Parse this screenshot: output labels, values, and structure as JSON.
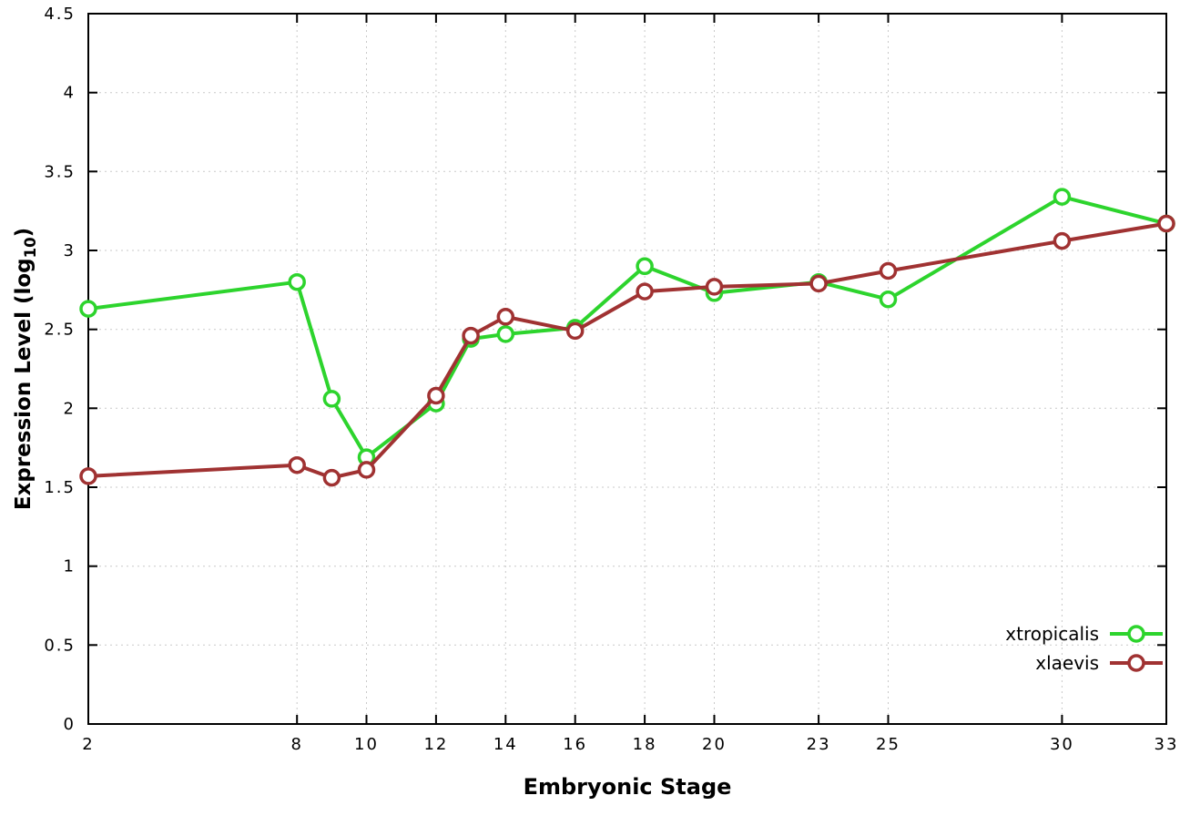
{
  "chart_data": {
    "type": "line",
    "x": [
      2,
      8,
      9,
      10,
      12,
      13,
      14,
      16,
      18,
      20,
      23,
      25,
      30,
      33
    ],
    "series": [
      {
        "name": "xtropicalis",
        "color": "#2dd42d",
        "values": [
          2.63,
          2.8,
          2.06,
          1.69,
          2.03,
          2.44,
          2.47,
          2.51,
          2.9,
          2.73,
          2.8,
          2.69,
          3.34,
          3.17
        ]
      },
      {
        "name": "xlaevis",
        "color": "#a03232",
        "values": [
          1.57,
          1.64,
          1.56,
          1.61,
          2.08,
          2.46,
          2.58,
          2.49,
          2.74,
          2.77,
          2.79,
          2.87,
          3.06,
          3.17
        ]
      }
    ],
    "title": "",
    "xlabel": "Embryonic Stage",
    "ylabel": "Expression Level (log10)",
    "ylabel_parts": {
      "main": "Expression Level (log",
      "sub": "10",
      "close": ")"
    },
    "xlim": [
      2,
      33
    ],
    "ylim": [
      0,
      4.5
    ],
    "xticks": [
      2,
      8,
      10,
      12,
      14,
      16,
      18,
      20,
      23,
      25,
      30,
      33
    ],
    "yticks": [
      0,
      0.5,
      1,
      1.5,
      2,
      2.5,
      3,
      3.5,
      4,
      4.5
    ],
    "ytick_labels": [
      "0",
      "0.5",
      "1",
      "1.5",
      "2",
      "2.5",
      "3",
      "3.5",
      "4",
      "4.5"
    ],
    "grid": true,
    "legend_position": "bottom-right",
    "marker": "open-circle"
  },
  "style": {
    "background": "#ffffff",
    "grid_color": "#c9c9c9",
    "axis_color": "#000000",
    "line_width": 4,
    "marker_radius": 8
  }
}
